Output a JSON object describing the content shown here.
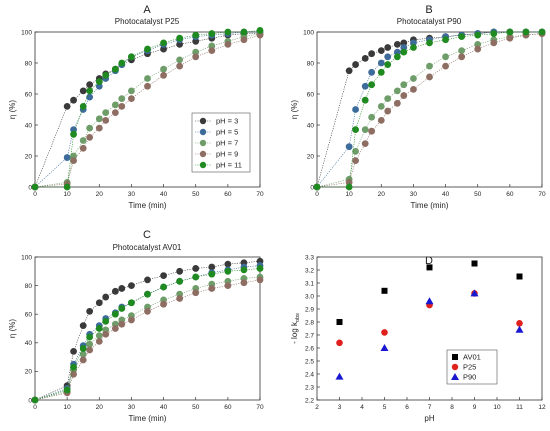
{
  "colors": {
    "ph3": "#3a3a3a",
    "ph5": "#3d6c9a",
    "ph7": "#6f9d6a",
    "ph9": "#8e6d62",
    "ph11": "#1f8a1f",
    "av01": "#000000",
    "p25": "#e0201c",
    "p90": "#1818d0"
  },
  "chart_data": [
    {
      "type": "scatter",
      "panel": "A",
      "title": "Photocatalyst P25",
      "xlabel": "Time (min)",
      "ylabel": "η (%)",
      "xlim": [
        0,
        70
      ],
      "ylim": [
        0,
        100
      ],
      "xticks": [
        0,
        10,
        20,
        30,
        40,
        50,
        60,
        70
      ],
      "yticks": [
        0,
        20,
        40,
        60,
        80,
        100
      ],
      "legend_position": "center-right",
      "series": [
        {
          "name": "pH = 3",
          "color_key": "ph3",
          "x": [
            0,
            10,
            12,
            15,
            17,
            20,
            22,
            25,
            27,
            30,
            35,
            40,
            45,
            50,
            55,
            60,
            65,
            70
          ],
          "y": [
            0,
            52,
            56,
            62,
            66,
            70,
            73,
            76,
            79,
            82,
            86,
            89,
            92,
            94,
            96,
            98,
            99,
            99
          ]
        },
        {
          "name": "pH = 5",
          "color_key": "ph5",
          "x": [
            0,
            10,
            12,
            15,
            17,
            20,
            22,
            25,
            27,
            30,
            35,
            40,
            45,
            50,
            55,
            60,
            65,
            70
          ],
          "y": [
            0,
            19,
            37,
            50,
            58,
            65,
            70,
            75,
            79,
            84,
            88,
            92,
            95,
            97,
            98,
            99,
            100,
            100
          ]
        },
        {
          "name": "pH = 7",
          "color_key": "ph7",
          "x": [
            0,
            10,
            12,
            15,
            17,
            20,
            22,
            25,
            27,
            30,
            35,
            40,
            45,
            50,
            55,
            60,
            65,
            70
          ],
          "y": [
            0,
            3,
            20,
            30,
            38,
            44,
            48,
            53,
            57,
            62,
            70,
            76,
            82,
            87,
            91,
            94,
            97,
            99
          ]
        },
        {
          "name": "pH = 9",
          "color_key": "ph9",
          "x": [
            0,
            10,
            12,
            15,
            17,
            20,
            22,
            25,
            27,
            30,
            35,
            40,
            45,
            50,
            55,
            60,
            65,
            70
          ],
          "y": [
            0,
            2,
            17,
            25,
            32,
            38,
            43,
            48,
            52,
            57,
            65,
            72,
            78,
            84,
            88,
            92,
            95,
            98
          ]
        },
        {
          "name": "pH = 11",
          "color_key": "ph11",
          "x": [
            0,
            10,
            12,
            15,
            17,
            20,
            22,
            25,
            27,
            30,
            35,
            40,
            45,
            50,
            55,
            60,
            65,
            70
          ],
          "y": [
            0,
            0,
            34,
            52,
            62,
            68,
            72,
            76,
            80,
            84,
            89,
            93,
            96,
            98,
            99,
            100,
            100,
            101
          ]
        }
      ]
    },
    {
      "type": "scatter",
      "panel": "B",
      "title": "Photocatalyst P90",
      "xlabel": "Time (min)",
      "ylabel": "η (%)",
      "xlim": [
        0,
        70
      ],
      "ylim": [
        0,
        100
      ],
      "xticks": [
        0,
        10,
        20,
        30,
        40,
        50,
        60,
        70
      ],
      "yticks": [
        0,
        20,
        40,
        60,
        80,
        100
      ],
      "series": [
        {
          "name": "pH = 3",
          "color_key": "ph3",
          "x": [
            0,
            10,
            12,
            15,
            17,
            20,
            22,
            25,
            27,
            30,
            35,
            40,
            45,
            50,
            55,
            60,
            65,
            70
          ],
          "y": [
            0,
            75,
            79,
            83,
            86,
            88,
            90,
            92,
            93,
            95,
            96,
            97,
            98,
            99,
            100,
            100,
            100,
            100
          ]
        },
        {
          "name": "pH = 5",
          "color_key": "ph5",
          "x": [
            0,
            10,
            12,
            15,
            17,
            20,
            22,
            25,
            27,
            30,
            35,
            40,
            45,
            50,
            55,
            60,
            65,
            70
          ],
          "y": [
            0,
            26,
            50,
            65,
            74,
            80,
            84,
            87,
            90,
            93,
            95,
            97,
            98,
            99,
            100,
            100,
            100,
            100
          ]
        },
        {
          "name": "pH = 7",
          "color_key": "ph7",
          "x": [
            0,
            10,
            12,
            15,
            17,
            20,
            22,
            25,
            27,
            30,
            35,
            40,
            45,
            50,
            55,
            60,
            65,
            70
          ],
          "y": [
            0,
            5,
            23,
            37,
            45,
            52,
            57,
            62,
            66,
            70,
            78,
            84,
            88,
            92,
            95,
            97,
            98,
            99
          ]
        },
        {
          "name": "pH = 9",
          "color_key": "ph9",
          "x": [
            0,
            10,
            12,
            15,
            17,
            20,
            22,
            25,
            27,
            30,
            35,
            40,
            45,
            50,
            55,
            60,
            65,
            70
          ],
          "y": [
            0,
            3,
            17,
            28,
            36,
            43,
            49,
            54,
            59,
            63,
            71,
            78,
            84,
            89,
            93,
            96,
            98,
            99
          ]
        },
        {
          "name": "pH = 11",
          "color_key": "ph11",
          "x": [
            0,
            10,
            12,
            15,
            17,
            20,
            22,
            25,
            27,
            30,
            35,
            40,
            45,
            50,
            55,
            60,
            65,
            70
          ],
          "y": [
            0,
            0,
            37,
            56,
            66,
            74,
            79,
            84,
            87,
            90,
            93,
            95,
            97,
            98,
            99,
            100,
            100,
            100
          ]
        }
      ]
    },
    {
      "type": "scatter",
      "panel": "C",
      "title": "Photocatalyst AV01",
      "xlabel": "Time (min)",
      "ylabel": "η (%)",
      "xlim": [
        0,
        70
      ],
      "ylim": [
        0,
        100
      ],
      "xticks": [
        0,
        10,
        20,
        30,
        40,
        50,
        60,
        70
      ],
      "yticks": [
        0,
        20,
        40,
        60,
        80,
        100
      ],
      "series": [
        {
          "name": "pH = 3",
          "color_key": "ph3",
          "x": [
            0,
            10,
            12,
            15,
            17,
            20,
            22,
            25,
            27,
            30,
            35,
            40,
            45,
            50,
            55,
            60,
            65,
            70
          ],
          "y": [
            0,
            10,
            34,
            52,
            62,
            68,
            72,
            76,
            78,
            80,
            84,
            87,
            90,
            92,
            93,
            95,
            96,
            97
          ]
        },
        {
          "name": "pH = 5",
          "color_key": "ph5",
          "x": [
            0,
            10,
            12,
            15,
            17,
            20,
            22,
            25,
            27,
            30,
            35,
            40,
            45,
            50,
            55,
            60,
            65,
            70
          ],
          "y": [
            0,
            8,
            25,
            38,
            46,
            52,
            57,
            61,
            65,
            68,
            74,
            79,
            83,
            86,
            89,
            91,
            93,
            94
          ]
        },
        {
          "name": "pH = 7",
          "color_key": "ph7",
          "x": [
            0,
            10,
            12,
            15,
            17,
            20,
            22,
            25,
            27,
            30,
            35,
            40,
            45,
            50,
            55,
            60,
            65,
            70
          ],
          "y": [
            0,
            6,
            21,
            32,
            39,
            45,
            49,
            53,
            56,
            59,
            65,
            70,
            74,
            78,
            81,
            83,
            85,
            86
          ]
        },
        {
          "name": "pH = 9",
          "color_key": "ph9",
          "x": [
            0,
            10,
            12,
            15,
            17,
            20,
            22,
            25,
            27,
            30,
            35,
            40,
            45,
            50,
            55,
            60,
            65,
            70
          ],
          "y": [
            0,
            5,
            18,
            28,
            35,
            41,
            46,
            50,
            53,
            56,
            62,
            67,
            71,
            75,
            78,
            80,
            82,
            84
          ]
        },
        {
          "name": "pH = 11",
          "color_key": "ph11",
          "x": [
            0,
            10,
            12,
            15,
            17,
            20,
            22,
            25,
            27,
            30,
            35,
            40,
            45,
            50,
            55,
            60,
            65,
            70
          ],
          "y": [
            0,
            7,
            23,
            36,
            44,
            50,
            55,
            60,
            64,
            68,
            74,
            79,
            83,
            86,
            88,
            90,
            91,
            92
          ]
        }
      ]
    },
    {
      "type": "scatter",
      "panel": "D",
      "xlabel": "pH",
      "ylabel": "- log k",
      "ylabel_subscript": "obs",
      "xlim": [
        2,
        12
      ],
      "ylim": [
        2.2,
        3.3
      ],
      "xticks": [
        2,
        3,
        4,
        5,
        6,
        7,
        8,
        9,
        10,
        11,
        12
      ],
      "yticks": [
        2.2,
        2.3,
        2.4,
        2.5,
        2.6,
        2.7,
        2.8,
        2.9,
        3.0,
        3.1,
        3.2,
        3.3
      ],
      "legend_position": "bottom-right",
      "series": [
        {
          "name": "AV01",
          "marker": "square",
          "color_key": "av01",
          "x": [
            3,
            5,
            7,
            9,
            11
          ],
          "y": [
            2.8,
            3.04,
            3.22,
            3.25,
            3.15
          ]
        },
        {
          "name": "P25",
          "marker": "circle",
          "color_key": "p25",
          "x": [
            3,
            5,
            7,
            9,
            11
          ],
          "y": [
            2.64,
            2.72,
            2.93,
            3.02,
            2.79
          ]
        },
        {
          "name": "P90",
          "marker": "triangle",
          "color_key": "p90",
          "x": [
            3,
            5,
            7,
            9,
            11
          ],
          "y": [
            2.38,
            2.6,
            2.96,
            3.02,
            2.74
          ]
        }
      ]
    }
  ]
}
